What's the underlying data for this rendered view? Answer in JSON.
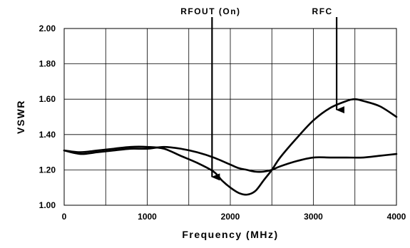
{
  "chart_data": {
    "type": "line",
    "title": "",
    "xlabel": "Frequency (MHz)",
    "ylabel": "VSWR",
    "xlim": [
      0,
      4000
    ],
    "ylim": [
      1.0,
      2.0
    ],
    "xticks": [
      0,
      1000,
      2000,
      3000,
      4000
    ],
    "xtick_labels": [
      "0",
      "1000",
      "2000",
      "3000",
      "4000"
    ],
    "yticks": [
      1.0,
      1.2,
      1.4,
      1.6,
      1.8,
      2.0
    ],
    "ytick_labels": [
      "1.00",
      "1.20",
      "1.40",
      "1.60",
      "1.80",
      "2.00"
    ],
    "grid": true,
    "series": [
      {
        "label": "RFOUT (On)",
        "x": [
          0,
          200,
          400,
          600,
          800,
          1000,
          1200,
          1400,
          1600,
          1800,
          1900,
          2000,
          2100,
          2200,
          2300,
          2400,
          2500,
          2600,
          2800,
          3000,
          3200,
          3400,
          3500,
          3600,
          3800,
          4000
        ],
        "values": [
          1.31,
          1.3,
          1.31,
          1.32,
          1.33,
          1.33,
          1.32,
          1.28,
          1.24,
          1.19,
          1.14,
          1.1,
          1.07,
          1.06,
          1.08,
          1.14,
          1.2,
          1.27,
          1.38,
          1.48,
          1.55,
          1.59,
          1.6,
          1.59,
          1.56,
          1.5
        ]
      },
      {
        "label": "RFC",
        "x": [
          0,
          200,
          400,
          600,
          800,
          1000,
          1200,
          1400,
          1600,
          1800,
          2000,
          2100,
          2200,
          2300,
          2400,
          2500,
          2600,
          2800,
          3000,
          3200,
          3400,
          3600,
          3800,
          4000
        ],
        "values": [
          1.31,
          1.29,
          1.3,
          1.31,
          1.32,
          1.32,
          1.33,
          1.32,
          1.3,
          1.27,
          1.23,
          1.21,
          1.2,
          1.19,
          1.19,
          1.2,
          1.22,
          1.25,
          1.27,
          1.27,
          1.27,
          1.27,
          1.28,
          1.29
        ]
      }
    ],
    "annotations": [
      {
        "text": "RFOUT (On)",
        "arrow_tip": [
          1780,
          1.16
        ],
        "series": 0
      },
      {
        "text": "RFC",
        "arrow_tip": [
          3280,
          1.54
        ],
        "series": 1
      }
    ]
  }
}
